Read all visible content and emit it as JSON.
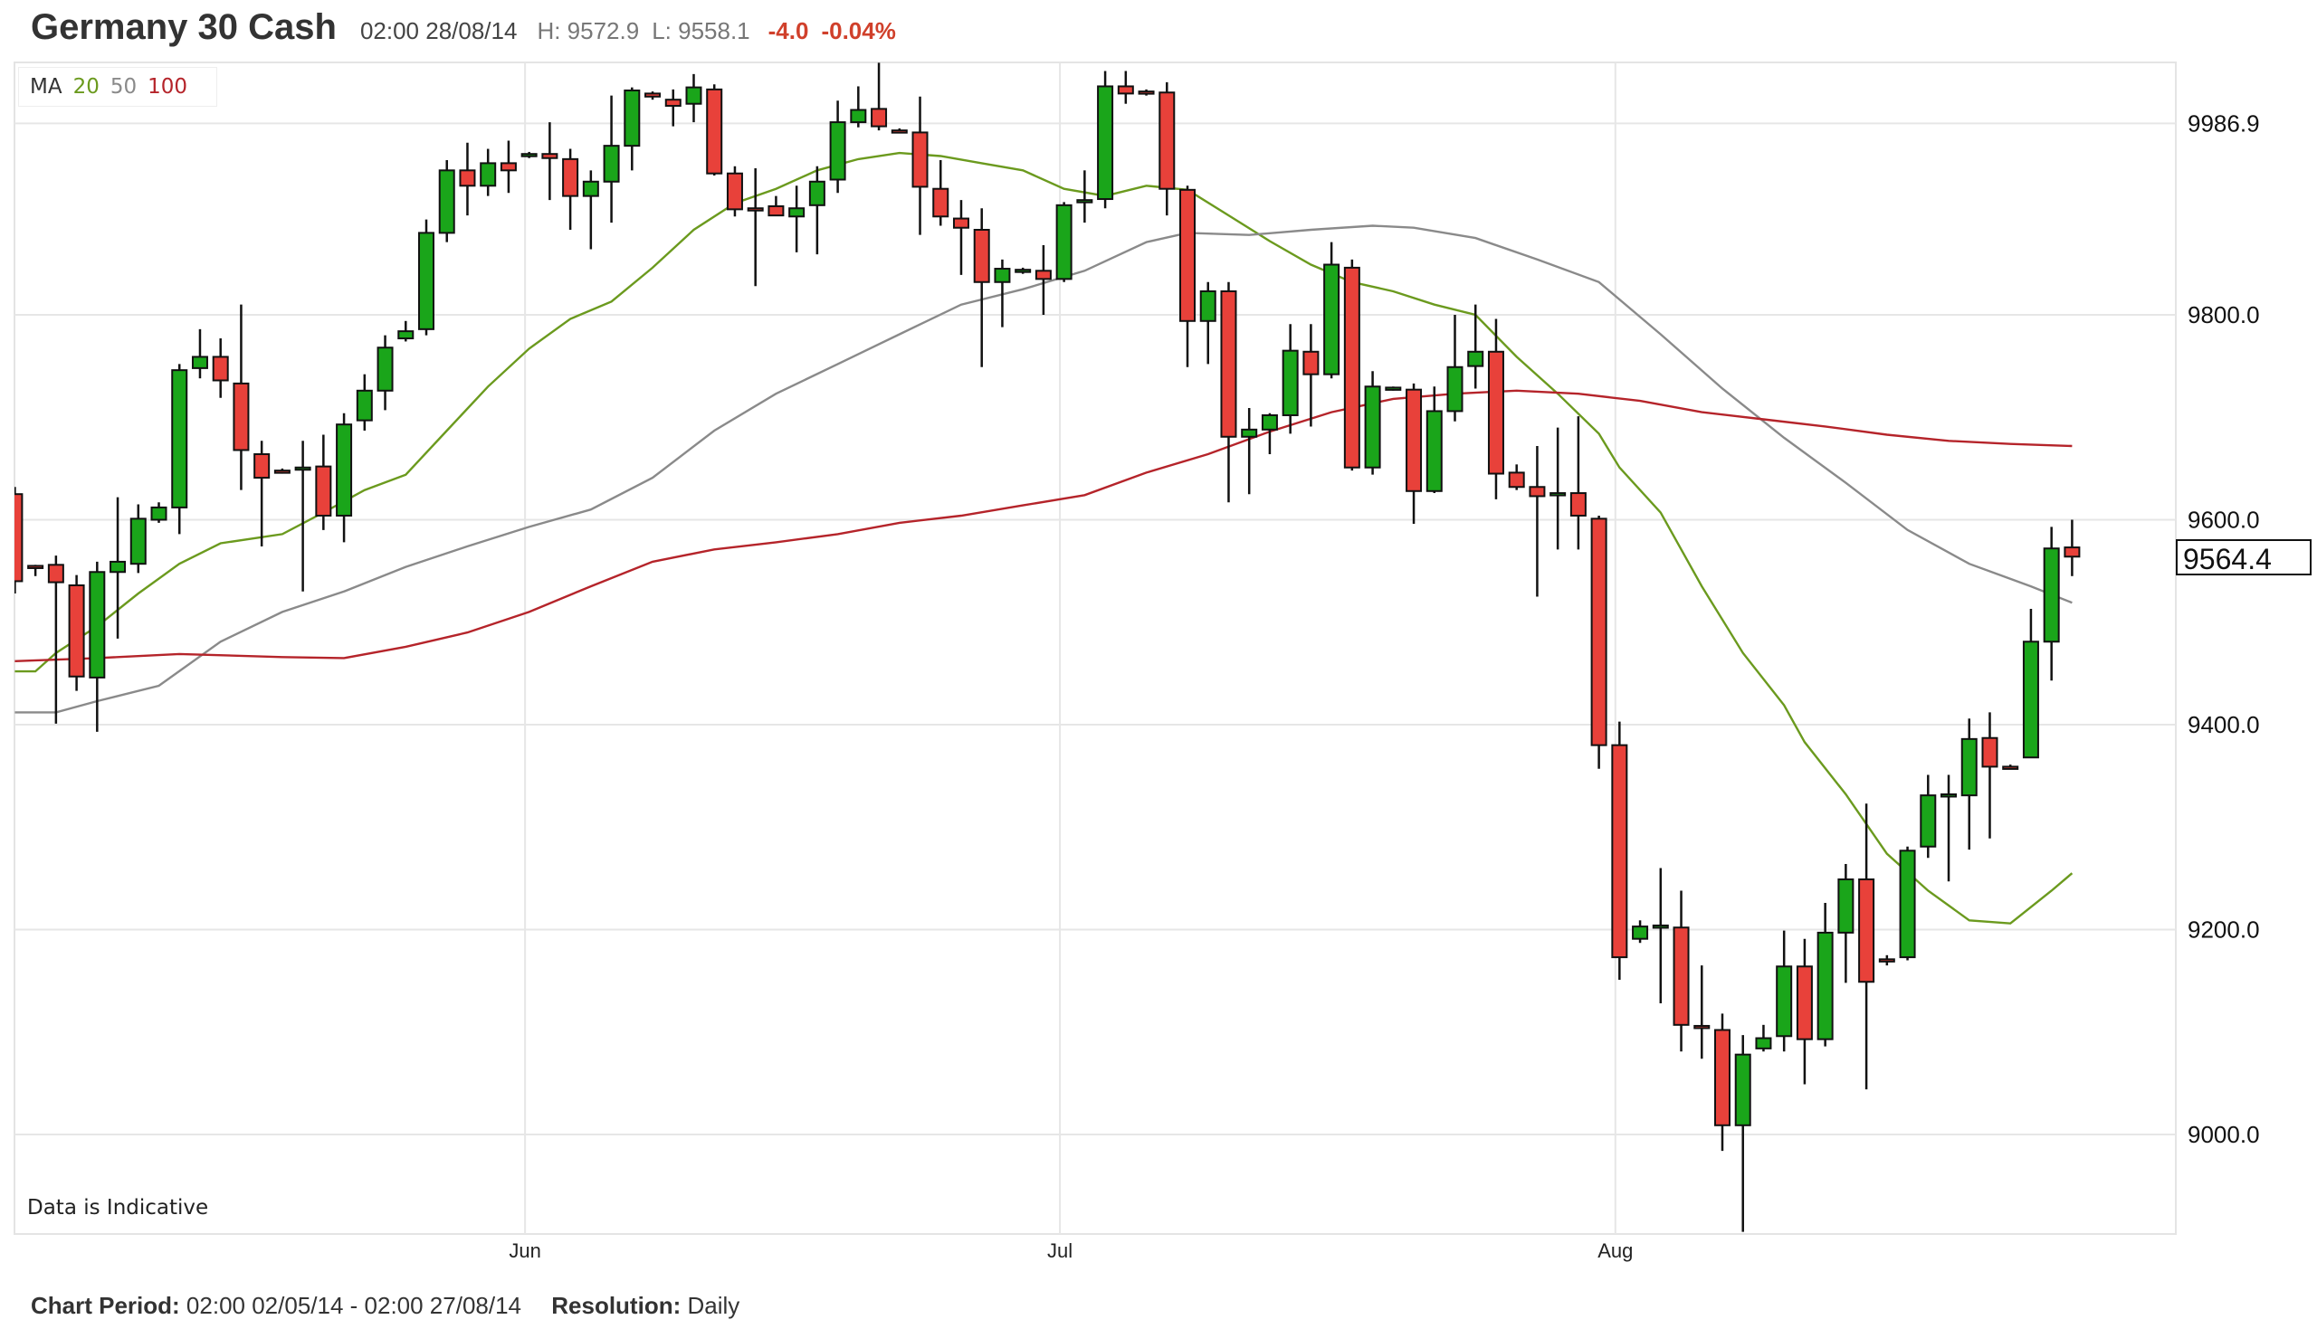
{
  "header": {
    "title": "Germany 30 Cash",
    "datetime": "02:00 28/08/14",
    "high": "H: 9572.9",
    "low": "L: 9558.1",
    "change": "-4.0",
    "change_pct": "-0.04%"
  },
  "legend": {
    "label": "MA",
    "ma20": "20",
    "ma50": "50",
    "ma100": "100"
  },
  "note": "Data is Indicative",
  "current_price": "9564.4",
  "footer": {
    "period_label": "Chart Period:",
    "period_value": "02:00 02/05/14 - 02:00 27/08/14",
    "resolution_label": "Resolution:",
    "resolution_value": "Daily"
  },
  "colors": {
    "up": "#1aa51a",
    "down": "#e8413a",
    "ma20": "#6b9a1e",
    "ma50": "#8a8a8a",
    "ma100": "#b5242a",
    "change": "#d0402b"
  },
  "chart_data": {
    "type": "candlestick",
    "ylim": [
      8900,
      10050
    ],
    "y_ticks": [
      "9986.9",
      "9800.0",
      "9600.0",
      "9400.0",
      "9200.0",
      "9000.0"
    ],
    "x_tick_labels": [
      {
        "label": "Jun",
        "index": 24.8
      },
      {
        "label": "Jul",
        "index": 50.8
      },
      {
        "label": "Aug",
        "index": 77.8
      }
    ],
    "grid": true,
    "candles_ohlc": [
      [
        9625,
        9632,
        9528,
        9540
      ],
      [
        9555,
        9556,
        9545,
        9553
      ],
      [
        9556,
        9565,
        9401,
        9539
      ],
      [
        9536,
        9546,
        9433,
        9447
      ],
      [
        9446,
        9559,
        9393,
        9549
      ],
      [
        9549,
        9622,
        9484,
        9559
      ],
      [
        9557,
        9615,
        9548,
        9601
      ],
      [
        9600,
        9617,
        9597,
        9612
      ],
      [
        9612,
        9752,
        9586,
        9746
      ],
      [
        9748,
        9786,
        9738,
        9759
      ],
      [
        9759,
        9777,
        9719,
        9736
      ],
      [
        9733,
        9810,
        9629,
        9668
      ],
      [
        9664,
        9677,
        9574,
        9641
      ],
      [
        9648,
        9650,
        9645,
        9647
      ],
      [
        9650,
        9677,
        9530,
        9651
      ],
      [
        9652,
        9683,
        9590,
        9604
      ],
      [
        9604,
        9704,
        9578,
        9693
      ],
      [
        9697,
        9742,
        9687,
        9726
      ],
      [
        9726,
        9780,
        9707,
        9768
      ],
      [
        9777,
        9794,
        9774,
        9784
      ],
      [
        9786,
        9893,
        9780,
        9880
      ],
      [
        9880,
        9951,
        9871,
        9941
      ],
      [
        9941,
        9968,
        9897,
        9926
      ],
      [
        9926,
        9962,
        9916,
        9948
      ],
      [
        9948,
        9970,
        9919,
        9941
      ],
      [
        9956,
        9959,
        9953,
        9957
      ],
      [
        9957,
        9988,
        9912,
        9953
      ],
      [
        9952,
        9962,
        9883,
        9916
      ],
      [
        9916,
        9941,
        9864,
        9930
      ],
      [
        9930,
        10014,
        9890,
        9965
      ],
      [
        9965,
        10022,
        9941,
        10019
      ],
      [
        10016,
        10018,
        10010,
        10013
      ],
      [
        10010,
        10020,
        9984,
        10004
      ],
      [
        10006,
        10035,
        9988,
        10022
      ],
      [
        10020,
        10025,
        9936,
        9938
      ],
      [
        9938,
        9945,
        9896,
        9903
      ],
      [
        9904,
        9943,
        9828,
        9903
      ],
      [
        9906,
        9916,
        9897,
        9897
      ],
      [
        9896,
        9926,
        9861,
        9904
      ],
      [
        9907,
        9945,
        9859,
        9930
      ],
      [
        9932,
        10009,
        9919,
        9988
      ],
      [
        9988,
        10023,
        9983,
        10000
      ],
      [
        10001,
        10046,
        9980,
        9984
      ],
      [
        9980,
        9982,
        9978,
        9979
      ],
      [
        9978,
        10013,
        9878,
        9925
      ],
      [
        9923,
        9951,
        9887,
        9896
      ],
      [
        9894,
        9912,
        9839,
        9885
      ],
      [
        9883,
        9904,
        9749,
        9832
      ],
      [
        9832,
        9854,
        9788,
        9845
      ],
      [
        9843,
        9846,
        9840,
        9844
      ],
      [
        9843,
        9868,
        9800,
        9835
      ],
      [
        9835,
        9910,
        9832,
        9907
      ],
      [
        9911,
        9941,
        9890,
        9912
      ],
      [
        9913,
        10038,
        9904,
        10023
      ],
      [
        10023,
        10038,
        10006,
        10016
      ],
      [
        10018,
        10020,
        10014,
        10016
      ],
      [
        10017,
        10027,
        9897,
        9923
      ],
      [
        9922,
        9926,
        9749,
        9794
      ],
      [
        9794,
        9832,
        9752,
        9823
      ],
      [
        9823,
        9832,
        9617,
        9681
      ],
      [
        9681,
        9709,
        9625,
        9688
      ],
      [
        9688,
        9704,
        9664,
        9702
      ],
      [
        9702,
        9791,
        9684,
        9765
      ],
      [
        9764,
        9791,
        9691,
        9742
      ],
      [
        9742,
        9871,
        9738,
        9849
      ],
      [
        9846,
        9854,
        9648,
        9651
      ],
      [
        9651,
        9745,
        9644,
        9730
      ],
      [
        9728,
        9730,
        9726,
        9729
      ],
      [
        9727,
        9733,
        9596,
        9628
      ],
      [
        9628,
        9730,
        9626,
        9706
      ],
      [
        9706,
        9800,
        9696,
        9749
      ],
      [
        9750,
        9810,
        9728,
        9764
      ],
      [
        9764,
        9796,
        9620,
        9645
      ],
      [
        9646,
        9654,
        9629,
        9632
      ],
      [
        9632,
        9672,
        9525,
        9623
      ],
      [
        9625,
        9690,
        9571,
        9626
      ],
      [
        9626,
        9701,
        9571,
        9604
      ],
      [
        9601,
        9604,
        9357,
        9380
      ],
      [
        9380,
        9403,
        9151,
        9173
      ],
      [
        9191,
        9209,
        9187,
        9203
      ],
      [
        9203,
        9260,
        9128,
        9204
      ],
      [
        9202,
        9238,
        9081,
        9107
      ],
      [
        9106,
        9165,
        9074,
        9105
      ],
      [
        9102,
        9118,
        8984,
        9009
      ],
      [
        9009,
        9097,
        8905,
        9078
      ],
      [
        9084,
        9107,
        9081,
        9094
      ],
      [
        9096,
        9199,
        9081,
        9164
      ],
      [
        9164,
        9191,
        9049,
        9093
      ],
      [
        9093,
        9226,
        9086,
        9197
      ],
      [
        9197,
        9264,
        9148,
        9249
      ],
      [
        9249,
        9323,
        9044,
        9149
      ],
      [
        9171,
        9175,
        9165,
        9170
      ],
      [
        9173,
        9281,
        9170,
        9277
      ],
      [
        9281,
        9351,
        9270,
        9331
      ],
      [
        9331,
        9351,
        9247,
        9332
      ],
      [
        9331,
        9406,
        9278,
        9386
      ],
      [
        9387,
        9412,
        9289,
        9359
      ],
      [
        9359,
        9361,
        9357,
        9358
      ],
      [
        9368,
        9513,
        9368,
        9481
      ],
      [
        9481,
        9593,
        9443,
        9572
      ],
      [
        9573,
        9600,
        9545,
        9564
      ]
    ],
    "moving_averages": [
      {
        "name": "20",
        "points": [
          [
            0,
            9452
          ],
          [
            1,
            9452
          ],
          [
            2,
            9470
          ],
          [
            4,
            9496
          ],
          [
            6,
            9528
          ],
          [
            8,
            9557
          ],
          [
            10,
            9577
          ],
          [
            13,
            9586
          ],
          [
            15,
            9607
          ],
          [
            17,
            9629
          ],
          [
            19,
            9644
          ],
          [
            21,
            9687
          ],
          [
            23,
            9730
          ],
          [
            25,
            9767
          ],
          [
            27,
            9796
          ],
          [
            29,
            9813
          ],
          [
            31,
            9846
          ],
          [
            33,
            9883
          ],
          [
            35,
            9909
          ],
          [
            37,
            9923
          ],
          [
            39,
            9941
          ],
          [
            41,
            9952
          ],
          [
            43,
            9958
          ],
          [
            45,
            9955
          ],
          [
            47,
            9948
          ],
          [
            49,
            9941
          ],
          [
            51,
            9923
          ],
          [
            53,
            9916
          ],
          [
            55,
            9926
          ],
          [
            57,
            9922
          ],
          [
            59,
            9897
          ],
          [
            61,
            9872
          ],
          [
            63,
            9849
          ],
          [
            65,
            9832
          ],
          [
            67,
            9823
          ],
          [
            69,
            9810
          ],
          [
            71,
            9800
          ],
          [
            73,
            9759
          ],
          [
            75,
            9723
          ],
          [
            77,
            9684
          ],
          [
            78,
            9651
          ],
          [
            80,
            9607
          ],
          [
            82,
            9535
          ],
          [
            84,
            9470
          ],
          [
            86,
            9419
          ],
          [
            87,
            9383
          ],
          [
            89,
            9332
          ],
          [
            91,
            9274
          ],
          [
            93,
            9238
          ],
          [
            95,
            9209
          ],
          [
            97,
            9206
          ],
          [
            99,
            9238
          ],
          [
            100,
            9255
          ]
        ]
      },
      {
        "name": "50",
        "points": [
          [
            0,
            9412
          ],
          [
            2,
            9412
          ],
          [
            4,
            9423
          ],
          [
            7,
            9438
          ],
          [
            10,
            9481
          ],
          [
            13,
            9510
          ],
          [
            16,
            9530
          ],
          [
            19,
            9554
          ],
          [
            22,
            9574
          ],
          [
            25,
            9593
          ],
          [
            28,
            9610
          ],
          [
            31,
            9641
          ],
          [
            34,
            9687
          ],
          [
            37,
            9723
          ],
          [
            40,
            9752
          ],
          [
            43,
            9781
          ],
          [
            46,
            9810
          ],
          [
            49,
            9825
          ],
          [
            52,
            9843
          ],
          [
            55,
            9871
          ],
          [
            57,
            9880
          ],
          [
            60,
            9878
          ],
          [
            63,
            9883
          ],
          [
            66,
            9887
          ],
          [
            68,
            9885
          ],
          [
            71,
            9875
          ],
          [
            74,
            9854
          ],
          [
            77,
            9832
          ],
          [
            80,
            9781
          ],
          [
            83,
            9728
          ],
          [
            86,
            9680
          ],
          [
            89,
            9636
          ],
          [
            92,
            9590
          ],
          [
            95,
            9557
          ],
          [
            98,
            9535
          ],
          [
            100,
            9519
          ]
        ]
      },
      {
        "name": "100",
        "points": [
          [
            0,
            9462
          ],
          [
            4,
            9465
          ],
          [
            8,
            9469
          ],
          [
            13,
            9466
          ],
          [
            16,
            9465
          ],
          [
            19,
            9476
          ],
          [
            22,
            9490
          ],
          [
            25,
            9510
          ],
          [
            28,
            9535
          ],
          [
            31,
            9559
          ],
          [
            34,
            9571
          ],
          [
            37,
            9578
          ],
          [
            40,
            9586
          ],
          [
            43,
            9597
          ],
          [
            46,
            9604
          ],
          [
            49,
            9614
          ],
          [
            52,
            9624
          ],
          [
            55,
            9646
          ],
          [
            58,
            9664
          ],
          [
            61,
            9686
          ],
          [
            64,
            9705
          ],
          [
            67,
            9718
          ],
          [
            70,
            9723
          ],
          [
            73,
            9726
          ],
          [
            76,
            9723
          ],
          [
            79,
            9716
          ],
          [
            82,
            9705
          ],
          [
            85,
            9698
          ],
          [
            88,
            9691
          ],
          [
            91,
            9683
          ],
          [
            94,
            9677
          ],
          [
            97,
            9674
          ],
          [
            100,
            9672
          ]
        ]
      }
    ]
  }
}
